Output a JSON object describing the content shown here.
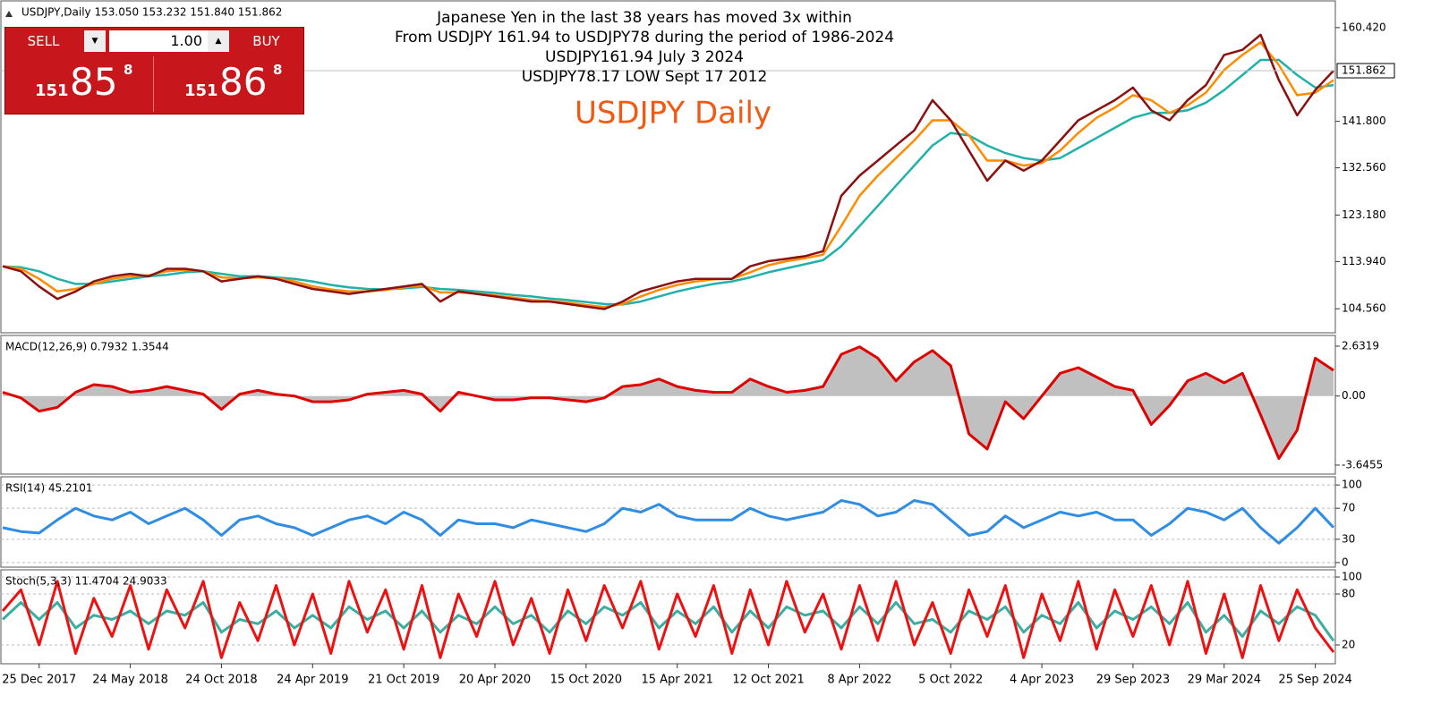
{
  "trade_panel": {
    "sell": "SELL",
    "buy": "BUY",
    "lot": "1.00",
    "sell_price": [
      "151",
      "85",
      "8"
    ],
    "buy_price": [
      "151",
      "86",
      "8"
    ]
  },
  "chart_data": [
    {
      "type": "line",
      "title": "USDJPY,Daily  153.050 153.232 151.840 151.862",
      "annotations": [
        "Japanese Yen in the last 38 years has moved 3x within",
        "From USDJPY 161.94 to USDJPY78 during the period of 1986-2024",
        "USDJPY161.94 July 3 2024",
        "USDJPY78.17 LOW Sept 17 2012"
      ],
      "highlight": "USDJPY Daily",
      "last_price": 151.862,
      "ylim": [
        99.79,
        165.55
      ],
      "yticks": [
        {
          "value": 104.56,
          "label": "104.560"
        },
        {
          "value": 113.94,
          "label": "113.940"
        },
        {
          "value": 123.18,
          "label": "123.180"
        },
        {
          "value": 132.56,
          "label": "132.560"
        },
        {
          "value": 141.8,
          "label": "141.800"
        },
        {
          "value": 160.42,
          "label": "160.420"
        }
      ],
      "series": [
        {
          "color": "#20b2aa",
          "values": [
            113,
            112.8,
            112,
            110.5,
            109.5,
            109.5,
            110,
            110.5,
            111,
            111.3,
            111.8,
            112,
            111.5,
            111,
            111,
            110.8,
            110.5,
            110,
            109.3,
            108.8,
            108.5,
            108.4,
            108.6,
            108.9,
            108.5,
            108.3,
            108,
            107.7,
            107.3,
            107,
            106.6,
            106.3,
            105.9,
            105.5,
            105.4,
            106,
            107,
            108,
            108.8,
            109.5,
            110,
            110.8,
            111.8,
            112.6,
            113.4,
            114.2,
            117,
            121,
            125,
            129,
            133,
            137,
            139.5,
            139,
            137,
            135.5,
            134.5,
            134,
            134.5,
            136.5,
            138.5,
            140.5,
            142.5,
            143.5,
            143.5,
            144,
            145.5,
            148,
            151,
            154,
            154,
            151,
            148.5,
            149
          ]
        },
        {
          "color": "#ff8c00",
          "values": [
            113,
            112.5,
            110.5,
            108,
            108.5,
            109.5,
            110.5,
            111,
            111.2,
            112,
            112.3,
            112,
            110.8,
            110.6,
            110.8,
            110.6,
            110,
            109,
            108.4,
            108,
            108,
            108.3,
            108.8,
            109.2,
            107.8,
            107.8,
            107.6,
            107.2,
            106.8,
            106.3,
            106.1,
            105.8,
            105.3,
            104.9,
            105.5,
            107,
            108.3,
            109.3,
            110,
            110.4,
            110.5,
            111.8,
            113.2,
            114,
            114.6,
            115.3,
            121,
            127,
            131,
            134.5,
            138,
            142,
            142,
            139,
            134,
            134,
            133,
            133.5,
            136,
            139.5,
            142.5,
            144.5,
            147,
            146,
            143.5,
            145,
            147.5,
            152,
            155,
            157.5,
            153,
            147,
            147.5,
            150
          ]
        },
        {
          "color": "#8b1010",
          "values": [
            113,
            112,
            109,
            106.5,
            108,
            110,
            111,
            111.5,
            111,
            112.5,
            112.5,
            112,
            110,
            110.5,
            111,
            110.5,
            109.5,
            108.5,
            108,
            107.5,
            108,
            108.5,
            109,
            109.5,
            106,
            108,
            107.5,
            107,
            106.5,
            106,
            106,
            105.5,
            105,
            104.5,
            106,
            108,
            109,
            110,
            110.5,
            110.5,
            110.5,
            113,
            114,
            114.5,
            115,
            116,
            127,
            131,
            134,
            137,
            140,
            146,
            142,
            136,
            130,
            134,
            132,
            134,
            138,
            142,
            144,
            146,
            148.5,
            144,
            142,
            146,
            149,
            155,
            156,
            159,
            150,
            143,
            148,
            151.862
          ]
        }
      ]
    },
    {
      "type": "area",
      "title": "MACD(12,26,9) 0.7932 1.3544",
      "ylim": [
        -4.12,
        3.15
      ],
      "yticks": [
        -3.6455,
        {
          "value": 0,
          "label": "0.00"
        },
        2.6319
      ],
      "color": "#c0c0c0",
      "line_color": "#e00000",
      "values": [
        0.2,
        -0.1,
        -0.8,
        -0.6,
        0.2,
        0.6,
        0.5,
        0.2,
        0.3,
        0.5,
        0.3,
        0.1,
        -0.7,
        0.1,
        0.3,
        0.1,
        0.0,
        -0.3,
        -0.3,
        -0.2,
        0.1,
        0.2,
        0.3,
        0.1,
        -0.8,
        0.2,
        0.0,
        -0.2,
        -0.2,
        -0.1,
        -0.1,
        -0.2,
        -0.3,
        -0.1,
        0.5,
        0.6,
        0.9,
        0.5,
        0.3,
        0.2,
        0.2,
        0.9,
        0.5,
        0.2,
        0.3,
        0.5,
        2.2,
        2.6,
        2.0,
        0.8,
        1.8,
        2.4,
        1.6,
        -2.0,
        -2.8,
        -0.3,
        -1.2,
        0.0,
        1.2,
        1.5,
        1.0,
        0.5,
        0.3,
        -1.5,
        -0.5,
        0.8,
        1.2,
        0.7,
        1.2,
        -1.0,
        -3.3,
        -1.8,
        2.0,
        1.3544
      ]
    },
    {
      "type": "line",
      "title": "RSI(14) 45.2101",
      "ylim": [
        -5.9,
        109.4
      ],
      "yticks": [
        0,
        30,
        70,
        100
      ],
      "series": [
        {
          "color": "#2f8de4",
          "values": [
            45,
            40,
            38,
            55,
            70,
            60,
            55,
            65,
            50,
            60,
            70,
            55,
            35,
            55,
            60,
            50,
            45,
            35,
            45,
            55,
            60,
            50,
            65,
            55,
            35,
            55,
            50,
            50,
            45,
            55,
            50,
            45,
            40,
            50,
            70,
            65,
            75,
            60,
            55,
            55,
            55,
            70,
            60,
            55,
            60,
            65,
            80,
            75,
            60,
            65,
            80,
            75,
            55,
            35,
            40,
            60,
            45,
            55,
            65,
            60,
            65,
            55,
            55,
            35,
            50,
            70,
            65,
            55,
            70,
            45,
            25,
            45,
            70,
            45.2101
          ]
        }
      ]
    },
    {
      "type": "line",
      "title": "Stoch(5,3,3) 11.4704 24.9033",
      "ylim": [
        -2.1,
        107.4
      ],
      "yticks": [
        20,
        80,
        100
      ],
      "categories": [
        null,
        null,
        "25 Dec 2017",
        null,
        null,
        null,
        null,
        "24 May 2018",
        null,
        null,
        null,
        null,
        "24 Oct 2018",
        null,
        null,
        null,
        null,
        "24 Apr 2019",
        null,
        null,
        null,
        null,
        "21 Oct 2019",
        null,
        null,
        null,
        null,
        "20 Apr 2020",
        null,
        null,
        null,
        null,
        "15 Oct 2020",
        null,
        null,
        null,
        null,
        "15 Apr 2021",
        null,
        null,
        null,
        null,
        "12 Oct 2021",
        null,
        null,
        null,
        null,
        "8 Apr 2022",
        null,
        null,
        null,
        null,
        "5 Oct 2022",
        null,
        null,
        null,
        null,
        "4 Apr 2023",
        null,
        null,
        null,
        null,
        "29 Sep 2023",
        null,
        null,
        null,
        null,
        "29 Mar 2024",
        null,
        null,
        null,
        null,
        "25 Sep 2024",
        null
      ],
      "series": [
        {
          "color": "#3aaea0",
          "values": [
            50,
            70,
            50,
            70,
            40,
            55,
            50,
            60,
            45,
            60,
            55,
            70,
            35,
            50,
            45,
            60,
            40,
            55,
            40,
            65,
            50,
            60,
            40,
            60,
            35,
            55,
            45,
            65,
            45,
            55,
            35,
            60,
            45,
            65,
            55,
            70,
            40,
            60,
            45,
            65,
            35,
            60,
            40,
            65,
            55,
            60,
            40,
            65,
            45,
            70,
            45,
            50,
            35,
            60,
            50,
            65,
            35,
            55,
            45,
            70,
            40,
            60,
            50,
            65,
            45,
            70,
            35,
            55,
            30,
            60,
            45,
            65,
            55,
            24.9033
          ]
        },
        {
          "color": "#ee1111",
          "values": [
            60,
            85,
            20,
            95,
            10,
            75,
            30,
            90,
            15,
            85,
            40,
            95,
            5,
            70,
            25,
            90,
            20,
            80,
            10,
            95,
            35,
            85,
            15,
            90,
            5,
            80,
            30,
            95,
            20,
            75,
            10,
            85,
            25,
            90,
            40,
            95,
            15,
            80,
            30,
            90,
            10,
            85,
            20,
            95,
            35,
            80,
            15,
            90,
            25,
            95,
            20,
            70,
            10,
            85,
            30,
            90,
            5,
            80,
            25,
            95,
            15,
            85,
            30,
            90,
            20,
            95,
            10,
            80,
            5,
            90,
            25,
            85,
            40,
            11.4704
          ]
        }
      ]
    }
  ]
}
